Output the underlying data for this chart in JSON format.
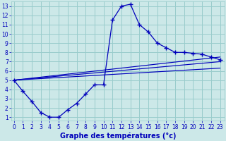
{
  "xlabel": "Graphe des températures (°c)",
  "bg_color": "#cce8e8",
  "grid_color": "#99cccc",
  "line_color": "#0000bb",
  "marker": "+",
  "x_hours": [
    0,
    1,
    2,
    3,
    4,
    5,
    6,
    7,
    8,
    9,
    10,
    11,
    12,
    13,
    14,
    15,
    16,
    17,
    18,
    19,
    20,
    21,
    22,
    23
  ],
  "series1": [
    5.0,
    3.8,
    2.7,
    1.5,
    1.0,
    1.0,
    1.8,
    2.5,
    3.5,
    4.5,
    4.5,
    11.5,
    13.0,
    13.2,
    11.0,
    10.2,
    9.0,
    8.5,
    8.0,
    8.0,
    7.9,
    7.8,
    7.5,
    7.2
  ],
  "line_a": [
    [
      0,
      23
    ],
    [
      5.0,
      7.5
    ]
  ],
  "line_b": [
    [
      0,
      23
    ],
    [
      5.0,
      7.0
    ]
  ],
  "line_c": [
    [
      0,
      23
    ],
    [
      5.0,
      6.3
    ]
  ],
  "xlim": [
    -0.3,
    23.5
  ],
  "ylim": [
    0.6,
    13.5
  ],
  "yticks": [
    1,
    2,
    3,
    4,
    5,
    6,
    7,
    8,
    9,
    10,
    11,
    12,
    13
  ],
  "xticks": [
    0,
    1,
    2,
    3,
    4,
    5,
    6,
    7,
    8,
    9,
    10,
    11,
    12,
    13,
    14,
    15,
    16,
    17,
    18,
    19,
    20,
    21,
    22,
    23
  ],
  "tick_fontsize": 5.5,
  "xlabel_fontsize": 7.0
}
